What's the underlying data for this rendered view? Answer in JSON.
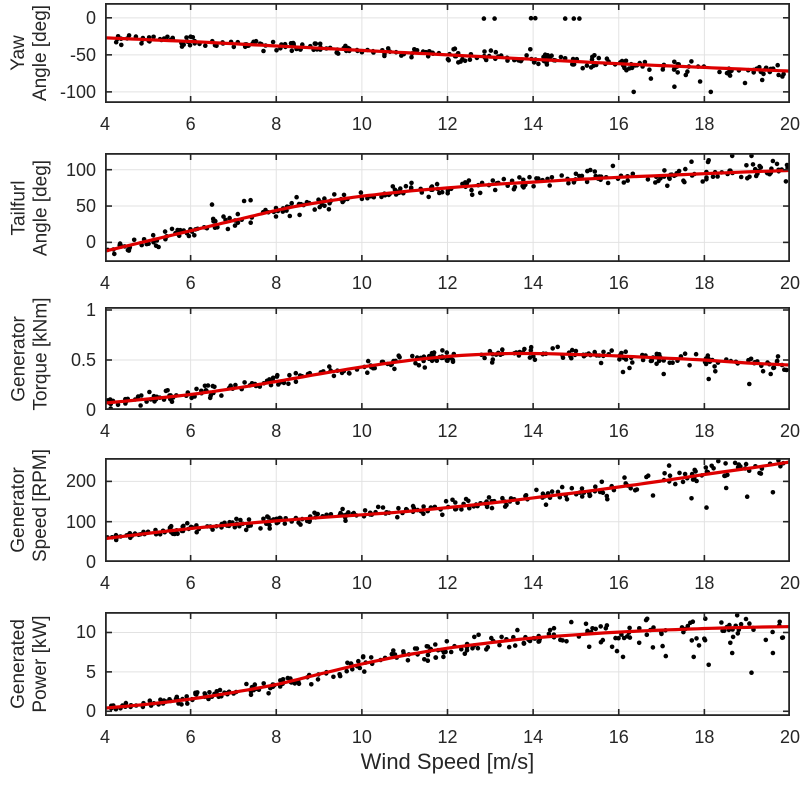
{
  "figure": {
    "background": "#ffffff",
    "description": "Five stacked scatter plots of wind turbine measurements versus wind speed, each with a red fitted curve"
  },
  "chart_data": {
    "type": "scatter",
    "xlabel": "Wind Speed [m/s]",
    "xlim": [
      4,
      20
    ],
    "xticks": [
      4,
      6,
      8,
      10,
      12,
      14,
      16,
      18,
      20
    ],
    "grid": true,
    "legend": "none",
    "style": {
      "point_color": "#000000",
      "fit_color": "#dd0000",
      "grid_color": "#e2e2e2",
      "axis_color": "#262626",
      "text_color": "#262626"
    },
    "panels": [
      {
        "id": "yaw-angle",
        "ylabel_lines": [
          "Yaw",
          "Angle [deg]"
        ],
        "ylim": [
          -115,
          20
        ],
        "yticks": [
          0,
          -50,
          -100
        ],
        "fit_curve": [
          [
            4,
            -27
          ],
          [
            5,
            -29.5
          ],
          [
            6,
            -32
          ],
          [
            7,
            -35
          ],
          [
            8,
            -38
          ],
          [
            9,
            -41
          ],
          [
            10,
            -44
          ],
          [
            11,
            -47
          ],
          [
            12,
            -50
          ],
          [
            13,
            -53
          ],
          [
            14,
            -56
          ],
          [
            15,
            -59
          ],
          [
            16,
            -62
          ],
          [
            17,
            -64.5
          ],
          [
            18,
            -67
          ],
          [
            19,
            -69.5
          ],
          [
            20,
            -72
          ]
        ],
        "scatter": {
          "n": 255,
          "seed": 101,
          "noise_sd": [
            3.5,
            4.5
          ]
        },
        "outliers": [
          [
            12.85,
            -1
          ],
          [
            13.1,
            -1
          ],
          [
            13.95,
            -0.5
          ],
          [
            14.05,
            -0.5
          ],
          [
            14.75,
            -1
          ],
          [
            14.95,
            -1
          ],
          [
            15.08,
            -1
          ],
          [
            16.35,
            -100
          ],
          [
            16.75,
            -82
          ],
          [
            17.3,
            -93
          ],
          [
            17.9,
            -86
          ],
          [
            18.15,
            -100
          ],
          [
            18.6,
            -78
          ],
          [
            18.95,
            -88
          ],
          [
            19.35,
            -84
          ],
          [
            19.85,
            -76
          ]
        ]
      },
      {
        "id": "tailfurl-angle",
        "ylabel_lines": [
          "Tailfurl",
          "Angle [deg]"
        ],
        "ylim": [
          -27,
          123
        ],
        "yticks": [
          100,
          50,
          0
        ],
        "fit_curve": [
          [
            4,
            -12
          ],
          [
            4.5,
            -5
          ],
          [
            5,
            2
          ],
          [
            5.5,
            9
          ],
          [
            6,
            16
          ],
          [
            6.5,
            23
          ],
          [
            7,
            30
          ],
          [
            7.5,
            37
          ],
          [
            8,
            44
          ],
          [
            8.5,
            50
          ],
          [
            9,
            55
          ],
          [
            9.5,
            59.5
          ],
          [
            10,
            63.5
          ],
          [
            11,
            70
          ],
          [
            12,
            75
          ],
          [
            13,
            79.5
          ],
          [
            14,
            83
          ],
          [
            15,
            86.5
          ],
          [
            16,
            89.5
          ],
          [
            17,
            92
          ],
          [
            18,
            94.5
          ],
          [
            19,
            97
          ],
          [
            20,
            99
          ]
        ],
        "scatter": {
          "n": 255,
          "seed": 102,
          "noise_sd": [
            5,
            6
          ]
        },
        "outliers": [
          [
            6.5,
            52
          ],
          [
            7.25,
            57
          ],
          [
            7.4,
            58
          ],
          [
            17.7,
            111
          ],
          [
            18.1,
            113
          ],
          [
            18.65,
            119
          ],
          [
            19.1,
            119
          ],
          [
            19.6,
            112
          ]
        ]
      },
      {
        "id": "generator-torque",
        "ylabel_lines": [
          "Generator",
          "Torque [kNm]"
        ],
        "ylim": [
          0,
          1.03
        ],
        "yticks": [
          1,
          0.5,
          0
        ],
        "fit_curve": [
          [
            4,
            0.07
          ],
          [
            5,
            0.11
          ],
          [
            6,
            0.155
          ],
          [
            7,
            0.215
          ],
          [
            8,
            0.285
          ],
          [
            9,
            0.36
          ],
          [
            10,
            0.43
          ],
          [
            11,
            0.49
          ],
          [
            12,
            0.535
          ],
          [
            13,
            0.56
          ],
          [
            14,
            0.565
          ],
          [
            15,
            0.555
          ],
          [
            16,
            0.54
          ],
          [
            17,
            0.52
          ],
          [
            18,
            0.5
          ],
          [
            19,
            0.47
          ],
          [
            20,
            0.45
          ]
        ],
        "scatter": {
          "n": 255,
          "seed": 103,
          "noise_sd": [
            0.03,
            0.035
          ]
        },
        "outliers": [
          [
            16.1,
            0.38
          ],
          [
            17.05,
            0.36
          ],
          [
            18.1,
            0.31
          ],
          [
            19.05,
            0.26
          ],
          [
            19.55,
            0.36
          ]
        ]
      },
      {
        "id": "generator-speed",
        "ylabel_lines": [
          "Generator",
          "Speed [RPM]"
        ],
        "ylim": [
          0,
          258
        ],
        "yticks": [
          200,
          100,
          0
        ],
        "fit_curve": [
          [
            4,
            58
          ],
          [
            5,
            71
          ],
          [
            6,
            83
          ],
          [
            7,
            93
          ],
          [
            8,
            102
          ],
          [
            9,
            110
          ],
          [
            10,
            117
          ],
          [
            11,
            125
          ],
          [
            12,
            135
          ],
          [
            13,
            146
          ],
          [
            14,
            159
          ],
          [
            15,
            172
          ],
          [
            16,
            186
          ],
          [
            17,
            201
          ],
          [
            18,
            217
          ],
          [
            19,
            232
          ],
          [
            20,
            248
          ]
        ],
        "scatter": {
          "n": 260,
          "seed": 104,
          "noise_sd": [
            3.5,
            15.5
          ]
        },
        "outliers": [
          [
            16.8,
            165
          ],
          [
            17.7,
            158
          ],
          [
            18.05,
            135
          ],
          [
            19.0,
            162
          ],
          [
            19.6,
            173
          ]
        ]
      },
      {
        "id": "generated-power",
        "ylabel_lines": [
          "Generated",
          "Power [kW]"
        ],
        "ylim": [
          -0.6,
          12.6
        ],
        "yticks": [
          10,
          5,
          0
        ],
        "fit_curve": [
          [
            4,
            0.4
          ],
          [
            5,
            0.9
          ],
          [
            6,
            1.55
          ],
          [
            7,
            2.4
          ],
          [
            8,
            3.4
          ],
          [
            9,
            4.7
          ],
          [
            10,
            6.0
          ],
          [
            11,
            7.1
          ],
          [
            12,
            8.0
          ],
          [
            13,
            8.7
          ],
          [
            14,
            9.3
          ],
          [
            15,
            9.7
          ],
          [
            16,
            10.05
          ],
          [
            17,
            10.3
          ],
          [
            18,
            10.5
          ],
          [
            19,
            10.65
          ],
          [
            20,
            10.75
          ]
        ],
        "scatter": {
          "n": 260,
          "seed": 105,
          "noise_sd": [
            0.22,
            1.1
          ]
        },
        "outliers": [
          [
            16.1,
            6.9
          ],
          [
            17.1,
            7.0
          ],
          [
            17.75,
            6.9
          ],
          [
            18.1,
            5.9
          ],
          [
            18.65,
            7.4
          ],
          [
            19.1,
            4.9
          ],
          [
            19.6,
            7.4
          ]
        ]
      }
    ]
  }
}
